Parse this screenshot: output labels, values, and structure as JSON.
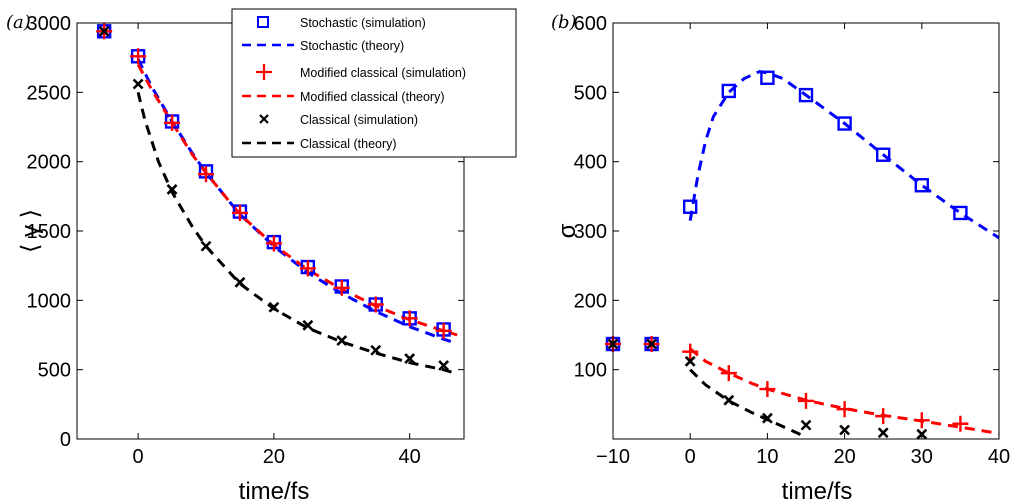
{
  "colors": {
    "stochastic": "#0000ff",
    "modified": "#ff0000",
    "classical": "#000000"
  },
  "chart_data": [
    {
      "panel_label": "(a)",
      "type": "line",
      "xlabel": "time/fs",
      "ylabel": "⟨ γ ⟩",
      "xlim": [
        -9,
        48
      ],
      "ylim": [
        0,
        3000
      ],
      "xticks": [
        0,
        20,
        40
      ],
      "yticks": [
        0,
        500,
        1000,
        1500,
        2000,
        2500,
        3000
      ],
      "grid": false,
      "legend": {
        "placement": "top-right",
        "entries": [
          "Stochastic (simulation)",
          "Stochastic (theory)",
          "Modified classical (simulation)",
          "Modified classical (theory)",
          "Classical (simulation)",
          "Classical (theory)"
        ]
      },
      "series": [
        {
          "name": "Stochastic (simulation)",
          "kind": "markers",
          "marker": "square",
          "color_key": "stochastic",
          "x": [
            -5,
            0,
            5,
            10,
            15,
            20,
            25,
            30,
            35,
            40,
            45
          ],
          "y": [
            2940,
            2760,
            2290,
            1930,
            1640,
            1420,
            1240,
            1100,
            970,
            870,
            790
          ]
        },
        {
          "name": "Stochastic (theory)",
          "kind": "dashed",
          "color_key": "stochastic",
          "x": [
            0,
            2,
            5,
            8,
            10,
            15,
            20,
            25,
            30,
            35,
            40,
            45,
            47
          ],
          "y": [
            2740,
            2540,
            2290,
            2060,
            1920,
            1620,
            1390,
            1200,
            1050,
            920,
            810,
            720,
            690
          ]
        },
        {
          "name": "Modified classical (simulation)",
          "kind": "markers",
          "marker": "plus",
          "color_key": "modified",
          "x": [
            -5,
            0,
            5,
            10,
            15,
            20,
            25,
            30,
            35,
            40,
            45
          ],
          "y": [
            2940,
            2760,
            2280,
            1910,
            1630,
            1410,
            1230,
            1090,
            970,
            870,
            780
          ]
        },
        {
          "name": "Modified classical (theory)",
          "kind": "dashed",
          "color_key": "modified",
          "x": [
            0,
            2,
            5,
            8,
            10,
            15,
            20,
            25,
            30,
            35,
            40,
            45,
            47
          ],
          "y": [
            2700,
            2520,
            2280,
            2050,
            1920,
            1620,
            1400,
            1220,
            1080,
            960,
            860,
            780,
            750
          ]
        },
        {
          "name": "Classical (simulation)",
          "kind": "markers",
          "marker": "x",
          "color_key": "classical",
          "x": [
            -5,
            0,
            5,
            10,
            15,
            20,
            25,
            30,
            35,
            40,
            45
          ],
          "y": [
            2940,
            2560,
            1800,
            1390,
            1130,
            950,
            820,
            710,
            640,
            580,
            530
          ]
        },
        {
          "name": "Classical (theory)",
          "kind": "dashed",
          "color_key": "classical",
          "x": [
            0,
            1,
            3,
            5,
            8,
            10,
            15,
            20,
            25,
            30,
            35,
            40,
            45,
            47
          ],
          "y": [
            2500,
            2300,
            2000,
            1780,
            1530,
            1390,
            1120,
            940,
            800,
            700,
            620,
            550,
            500,
            470
          ]
        }
      ]
    },
    {
      "panel_label": "(b)",
      "type": "line",
      "xlabel": "time/fs",
      "ylabel": "σ",
      "xlim": [
        -10,
        40
      ],
      "ylim": [
        0,
        600
      ],
      "xticks": [
        -10,
        0,
        10,
        20,
        30,
        40
      ],
      "yticks": [
        100,
        200,
        300,
        400,
        500,
        600
      ],
      "grid": false,
      "series": [
        {
          "name": "Stochastic (simulation)",
          "kind": "markers",
          "marker": "square",
          "color_key": "stochastic",
          "x": [
            -10,
            -5,
            0,
            5,
            10,
            15,
            20,
            25,
            30,
            35
          ],
          "y": [
            137,
            137,
            335,
            502,
            521,
            496,
            455,
            410,
            366,
            326
          ]
        },
        {
          "name": "Stochastic (theory)",
          "kind": "dashed",
          "color_key": "stochastic",
          "x": [
            0,
            1,
            2,
            3,
            5,
            7,
            9,
            10,
            12,
            15,
            20,
            25,
            30,
            35,
            40
          ],
          "y": [
            315,
            380,
            430,
            465,
            500,
            520,
            530,
            528,
            520,
            496,
            455,
            410,
            366,
            326,
            290
          ]
        },
        {
          "name": "Modified classical (simulation)",
          "kind": "markers",
          "marker": "plus",
          "color_key": "modified",
          "x": [
            -10,
            -5,
            0,
            5,
            10,
            15,
            20,
            25,
            30,
            35
          ],
          "y": [
            137,
            137,
            126,
            95,
            72,
            55,
            43,
            33,
            27,
            22
          ]
        },
        {
          "name": "Modified classical (theory)",
          "kind": "dashed",
          "color_key": "modified",
          "x": [
            0,
            2,
            5,
            8,
            10,
            15,
            20,
            25,
            30,
            35,
            40
          ],
          "y": [
            130,
            112,
            95,
            80,
            72,
            56,
            44,
            34,
            26,
            17,
            8
          ]
        },
        {
          "name": "Classical (simulation)",
          "kind": "markers",
          "marker": "x",
          "color_key": "classical",
          "x": [
            -10,
            -5,
            0,
            5,
            10,
            15,
            20,
            25,
            30
          ],
          "y": [
            137,
            137,
            112,
            56,
            30,
            20,
            13,
            9,
            7
          ]
        },
        {
          "name": "Classical (theory)",
          "kind": "dashed",
          "color_key": "classical",
          "x": [
            0,
            2,
            5,
            8,
            10,
            12,
            14,
            15
          ],
          "y": [
            100,
            78,
            55,
            38,
            28,
            18,
            8,
            2
          ]
        }
      ]
    }
  ]
}
